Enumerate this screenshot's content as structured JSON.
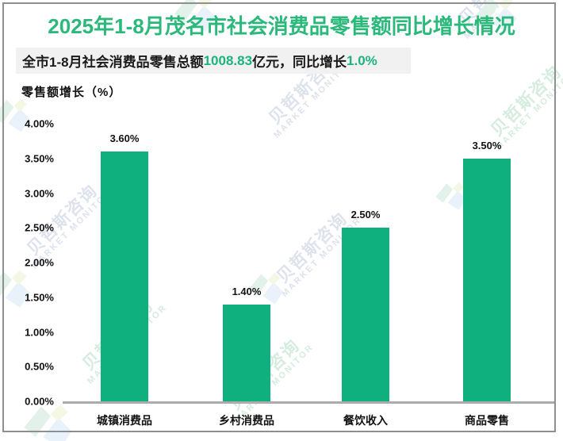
{
  "title": "2025年1-8月茂名市社会消费品零售额同比增长情况",
  "subtitle": {
    "prefix": "全市1-8月社会消费品零售总额",
    "value1": "1008.83",
    "mid": "亿元，同比增长",
    "value2": "1.0%"
  },
  "watermark": {
    "cn": "贝哲斯咨询",
    "en": "MARKET MONITOR"
  },
  "colors": {
    "title_green": "#2bb97b",
    "bar_green": "#10b07e",
    "highlight_green": "#1db47c",
    "subtitle_bg": "#f1f1f1",
    "axis_line_gray": "#acacac"
  },
  "chart_data": {
    "type": "bar",
    "title": "2025年1-8月茂名市社会消费品零售额同比增长情况",
    "ylabel": "零售额增长（%）",
    "xlabel": "",
    "categories": [
      "城镇消费品",
      "乡村消费品",
      "餐饮收入",
      "商品零售"
    ],
    "values": [
      3.6,
      1.4,
      2.5,
      3.5
    ],
    "value_labels": [
      "3.60%",
      "1.40%",
      "2.50%",
      "3.50%"
    ],
    "ylim": [
      0,
      4.0
    ],
    "ytick_step": 0.5,
    "ytick_labels": [
      "0.00%",
      "0.50%",
      "1.00%",
      "1.50%",
      "2.00%",
      "2.50%",
      "3.00%",
      "3.50%",
      "4.00%"
    ],
    "grid": false,
    "legend": null
  }
}
